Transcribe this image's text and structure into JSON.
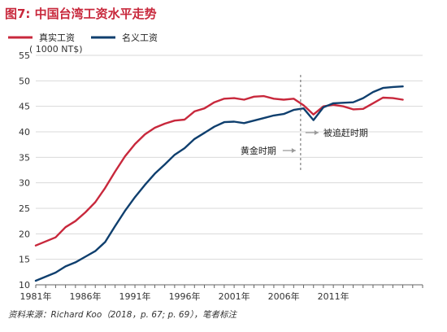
{
  "chart_data": {
    "type": "line",
    "title": "图7: 中国台湾工资水平走势",
    "unit_label": "( 1000 NT$)",
    "source_note": "资料来源：Richard Koo（2018，p. 67; p. 69），笔者标注",
    "ylim": [
      10,
      55
    ],
    "yticks": [
      10,
      15,
      20,
      25,
      30,
      35,
      40,
      45,
      50,
      55
    ],
    "xlim": [
      1981,
      2020
    ],
    "xticks": [
      {
        "value": 1981,
        "label": "1981年"
      },
      {
        "value": 1986,
        "label": "1986年"
      },
      {
        "value": 1991,
        "label": "1991年"
      },
      {
        "value": 1996,
        "label": "1996年"
      },
      {
        "value": 2001,
        "label": "2001年"
      },
      {
        "value": 2006,
        "label": "2006年"
      },
      {
        "value": 2011,
        "label": "2011年"
      }
    ],
    "grid": "horizontal",
    "legend_position": "top-left",
    "series": [
      {
        "name": "真实工资",
        "color": "#c8283c",
        "x": [
          1981,
          1982,
          1983,
          1984,
          1985,
          1986,
          1987,
          1988,
          1989,
          1990,
          1991,
          1992,
          1993,
          1994,
          1995,
          1996,
          1997,
          1998,
          1999,
          2000,
          2001,
          2002,
          2003,
          2004,
          2005,
          2006,
          2007,
          2008,
          2009,
          2010,
          2011,
          2012,
          2013,
          2014,
          2015,
          2016,
          2017,
          2018
        ],
        "values": [
          17.7,
          18.5,
          19.3,
          21.3,
          22.5,
          24.2,
          26.2,
          29.0,
          32.2,
          35.2,
          37.6,
          39.5,
          40.8,
          41.6,
          42.2,
          42.4,
          44.0,
          44.6,
          45.8,
          46.5,
          46.6,
          46.3,
          46.9,
          47.0,
          46.5,
          46.3,
          46.5,
          45.2,
          43.4,
          45.0,
          45.3,
          45.0,
          44.4,
          44.5,
          45.6,
          46.7,
          46.6,
          46.3
        ]
      },
      {
        "name": "名义工资",
        "color": "#0f3f6e",
        "x": [
          1981,
          1982,
          1983,
          1984,
          1985,
          1986,
          1987,
          1988,
          1989,
          1990,
          1991,
          1992,
          1993,
          1994,
          1995,
          1996,
          1997,
          1998,
          1999,
          2000,
          2001,
          2002,
          2003,
          2004,
          2005,
          2006,
          2007,
          2008,
          2009,
          2010,
          2011,
          2012,
          2013,
          2014,
          2015,
          2016,
          2017,
          2018
        ],
        "values": [
          10.8,
          11.6,
          12.4,
          13.6,
          14.4,
          15.5,
          16.6,
          18.4,
          21.5,
          24.5,
          27.2,
          29.6,
          31.8,
          33.6,
          35.5,
          36.8,
          38.6,
          39.8,
          41.0,
          41.9,
          42.0,
          41.7,
          42.2,
          42.7,
          43.2,
          43.5,
          44.3,
          44.6,
          42.3,
          44.8,
          45.6,
          45.7,
          45.8,
          46.6,
          47.8,
          48.6,
          48.8,
          48.9
        ]
      }
    ],
    "annotations": [
      {
        "text": "黄金时期",
        "arrow": "right"
      },
      {
        "text": "被追赶时期",
        "arrow": "right"
      }
    ],
    "divider_x": 2007.7
  }
}
